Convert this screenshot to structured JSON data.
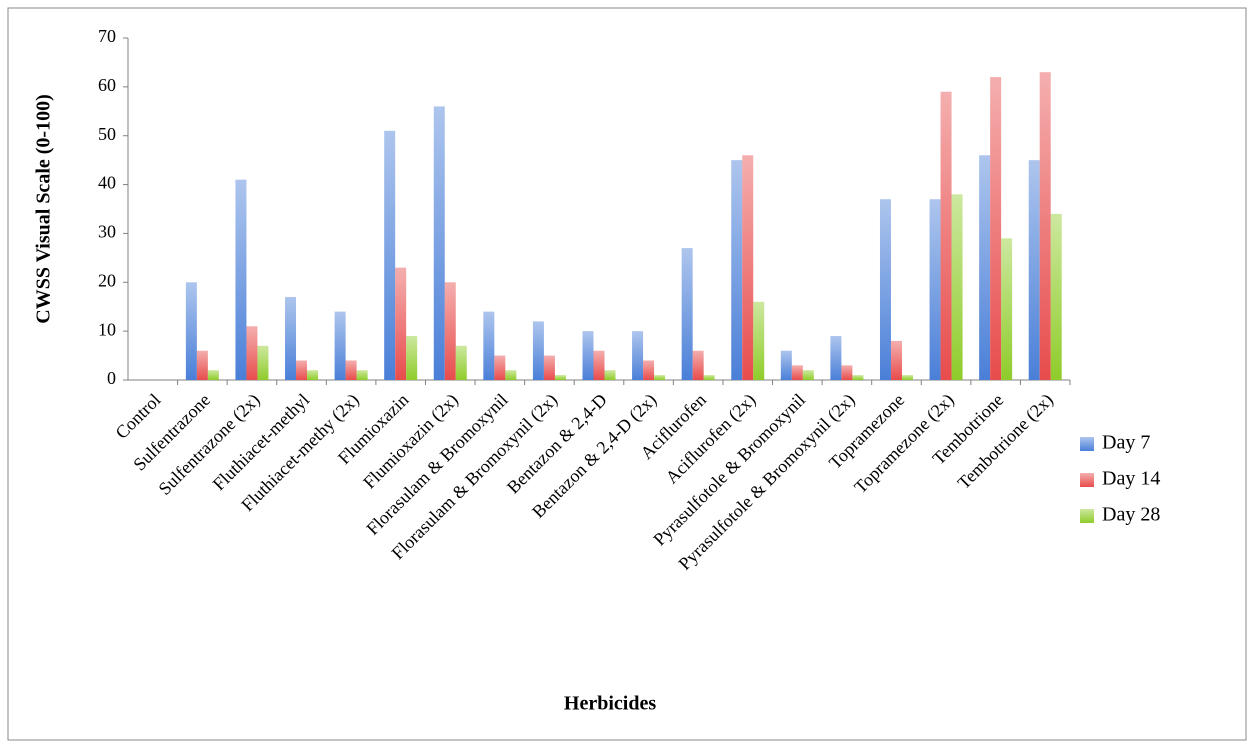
{
  "chart_data": {
    "type": "bar",
    "x_label": "Herbicides",
    "y_label": "CWSS Visual Scale (0-100)",
    "categories": [
      "Control",
      "Sulfentrazone",
      "Sulfentrazone (2x)",
      "Fluthiacet-methyl",
      "Fluthiacet-methy (2x)",
      "Flumioxazin",
      "Flumioxazin (2x)",
      "Florasulam & Bromoxynil",
      "Florasulam & Bromoxynil (2x)",
      "Bentazon & 2,4-D",
      "Bentazon & 2,4-D (2x)",
      "Aciflurofen",
      "Aciflurofen (2x)",
      "Pyrasulfotole & Bromoxynil",
      "Pyrasulfotole & Bromoxynil (2x)",
      "Topramezone",
      "Topramezone (2x)",
      "Tembotrione",
      "Tembotrione (2x)"
    ],
    "series": [
      {
        "name": "Day 7",
        "color": "#4a7fd8",
        "values": [
          0,
          20,
          41,
          17,
          14,
          51,
          56,
          14,
          12,
          10,
          10,
          27,
          45,
          6,
          9,
          37,
          37,
          46,
          45
        ]
      },
      {
        "name": "Day 14",
        "color": "#e84c4c",
        "values": [
          0,
          6,
          11,
          4,
          4,
          23,
          20,
          5,
          5,
          6,
          4,
          6,
          46,
          3,
          3,
          8,
          59,
          62,
          63
        ]
      },
      {
        "name": "Day 28",
        "color": "#8fcc2a",
        "values": [
          0,
          2,
          7,
          2,
          2,
          9,
          7,
          2,
          1,
          2,
          1,
          1,
          16,
          2,
          1,
          1,
          38,
          29,
          34
        ]
      }
    ],
    "ylim": [
      0,
      70
    ],
    "yticks": [
      0,
      10,
      20,
      30,
      40,
      50,
      60,
      70
    ],
    "legend": "right"
  }
}
